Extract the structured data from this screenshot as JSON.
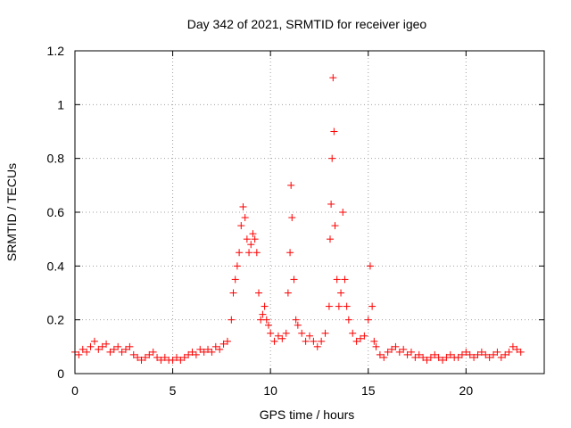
{
  "chart_data": {
    "type": "scatter",
    "title": "Day 342 of 2021, SRMTID for receiver igeo",
    "xlabel": "GPS time / hours",
    "ylabel": "SRMTID / TECUs",
    "xlim": [
      0,
      24
    ],
    "ylim": [
      0,
      1.2
    ],
    "xticks": [
      0,
      5,
      10,
      15,
      20
    ],
    "xtick_labels": [
      "0",
      "5",
      "10",
      "15",
      "20"
    ],
    "yticks": [
      0,
      0.2,
      0.4,
      0.6,
      0.8,
      1.0,
      1.2
    ],
    "ytick_labels": [
      "0",
      "0.2",
      "0.4",
      "0.6",
      "0.8",
      "1",
      "1.2"
    ],
    "grid": true,
    "marker": "+",
    "marker_color": "#ff0000",
    "series": [
      {
        "name": "SRMTID",
        "x": [
          0.0,
          0.2,
          0.4,
          0.6,
          0.8,
          1.0,
          1.2,
          1.4,
          1.6,
          1.8,
          2.0,
          2.2,
          2.4,
          2.6,
          2.8,
          3.0,
          3.2,
          3.4,
          3.6,
          3.8,
          4.0,
          4.2,
          4.4,
          4.6,
          4.8,
          5.0,
          5.2,
          5.4,
          5.6,
          5.8,
          6.0,
          6.2,
          6.4,
          6.6,
          6.8,
          7.0,
          7.2,
          7.4,
          7.6,
          7.8,
          8.0,
          8.1,
          8.2,
          8.3,
          8.4,
          8.5,
          8.6,
          8.7,
          8.8,
          8.9,
          9.0,
          9.1,
          9.2,
          9.3,
          9.4,
          9.5,
          9.6,
          9.7,
          9.8,
          9.9,
          10.0,
          10.2,
          10.4,
          10.6,
          10.8,
          10.9,
          11.0,
          11.05,
          11.1,
          11.2,
          11.3,
          11.4,
          11.6,
          11.8,
          12.0,
          12.2,
          12.4,
          12.6,
          12.8,
          13.0,
          13.05,
          13.1,
          13.15,
          13.2,
          13.25,
          13.3,
          13.4,
          13.5,
          13.6,
          13.7,
          13.8,
          13.9,
          14.0,
          14.2,
          14.4,
          14.6,
          14.8,
          15.0,
          15.1,
          15.2,
          15.3,
          15.4,
          15.6,
          15.8,
          16.0,
          16.2,
          16.4,
          16.6,
          16.8,
          17.0,
          17.2,
          17.4,
          17.6,
          17.8,
          18.0,
          18.2,
          18.4,
          18.6,
          18.8,
          19.0,
          19.2,
          19.4,
          19.6,
          19.8,
          20.0,
          20.2,
          20.4,
          20.6,
          20.8,
          21.0,
          21.2,
          21.4,
          21.6,
          21.8,
          22.0,
          22.2,
          22.4,
          22.6,
          22.8
        ],
        "y": [
          0.08,
          0.07,
          0.09,
          0.08,
          0.1,
          0.12,
          0.09,
          0.1,
          0.11,
          0.08,
          0.09,
          0.1,
          0.08,
          0.09,
          0.1,
          0.07,
          0.06,
          0.05,
          0.06,
          0.07,
          0.08,
          0.06,
          0.05,
          0.06,
          0.05,
          0.05,
          0.06,
          0.05,
          0.06,
          0.07,
          0.08,
          0.07,
          0.09,
          0.08,
          0.09,
          0.08,
          0.1,
          0.09,
          0.11,
          0.12,
          0.2,
          0.3,
          0.35,
          0.4,
          0.45,
          0.55,
          0.62,
          0.58,
          0.5,
          0.45,
          0.48,
          0.52,
          0.5,
          0.45,
          0.3,
          0.2,
          0.22,
          0.25,
          0.2,
          0.18,
          0.15,
          0.12,
          0.14,
          0.13,
          0.15,
          0.3,
          0.45,
          0.7,
          0.58,
          0.35,
          0.2,
          0.18,
          0.15,
          0.12,
          0.14,
          0.12,
          0.1,
          0.12,
          0.15,
          0.25,
          0.5,
          0.63,
          0.8,
          1.1,
          0.9,
          0.55,
          0.35,
          0.25,
          0.3,
          0.6,
          0.35,
          0.25,
          0.2,
          0.15,
          0.12,
          0.13,
          0.14,
          0.2,
          0.4,
          0.25,
          0.12,
          0.1,
          0.07,
          0.06,
          0.08,
          0.09,
          0.1,
          0.08,
          0.09,
          0.07,
          0.08,
          0.06,
          0.07,
          0.06,
          0.05,
          0.06,
          0.07,
          0.06,
          0.05,
          0.06,
          0.07,
          0.06,
          0.06,
          0.07,
          0.08,
          0.07,
          0.06,
          0.07,
          0.08,
          0.07,
          0.06,
          0.07,
          0.08,
          0.06,
          0.07,
          0.08,
          0.1,
          0.09,
          0.08
        ]
      }
    ]
  }
}
